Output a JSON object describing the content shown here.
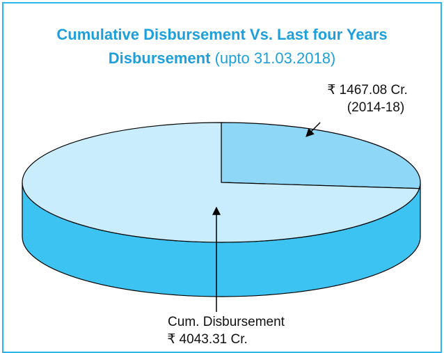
{
  "chart_data": {
    "type": "pie",
    "title": "Cumulative Disbursement Vs. Last four Years Disbursement",
    "subtitle": "(upto 31.03.2018)",
    "categories": [
      "(2014-18)",
      "Cum. Disbursement"
    ],
    "values": [
      1467.08,
      4043.31
    ],
    "value_labels": [
      "₹ 1467.08 Cr.",
      "₹ 4043.31 Cr."
    ],
    "colors": [
      "#8fd7f6",
      "#c9edfc"
    ],
    "side_color": "#3dc3f1",
    "title_color": "#1d9fdc"
  }
}
